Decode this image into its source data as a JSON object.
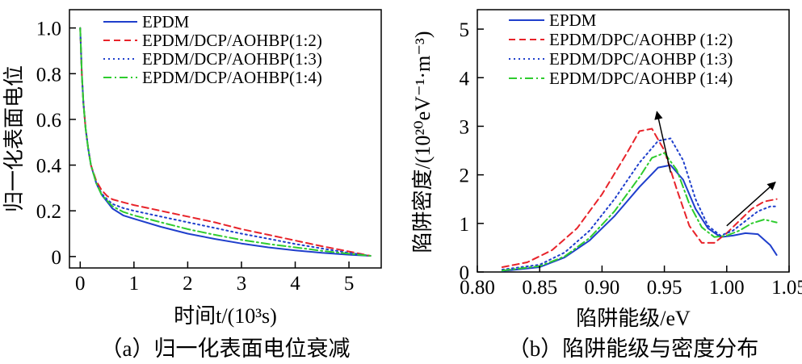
{
  "chart_data": [
    {
      "type": "line",
      "caption": "（a）归一化表面电位衰减",
      "xlabel": "时间t/(10³s)",
      "ylabel": "归一化表面电位",
      "xlim": [
        -0.2,
        5.6
      ],
      "ylim": [
        -0.05,
        1.08
      ],
      "xticks": [
        0,
        1,
        2,
        3,
        4,
        5
      ],
      "yticks": [
        "0",
        "0.2",
        "0.4",
        "0.6",
        "0.8",
        "1.0"
      ],
      "ytick_values": [
        0,
        0.2,
        0.4,
        0.6,
        0.8,
        1.0
      ],
      "legend_position": "top-right",
      "series": [
        {
          "name": "EPDM",
          "color": "#1f3fcc",
          "dash": "solid",
          "points": [
            [
              0,
              1.0
            ],
            [
              0.03,
              0.8
            ],
            [
              0.06,
              0.67
            ],
            [
              0.1,
              0.56
            ],
            [
              0.15,
              0.47
            ],
            [
              0.2,
              0.4
            ],
            [
              0.3,
              0.32
            ],
            [
              0.4,
              0.27
            ],
            [
              0.5,
              0.24
            ],
            [
              0.6,
              0.21
            ],
            [
              0.8,
              0.18
            ],
            [
              1.0,
              0.165
            ],
            [
              1.5,
              0.13
            ],
            [
              2.0,
              0.1
            ],
            [
              2.5,
              0.077
            ],
            [
              3.0,
              0.057
            ],
            [
              3.5,
              0.04
            ],
            [
              4.0,
              0.027
            ],
            [
              4.5,
              0.016
            ],
            [
              5.0,
              0.008
            ],
            [
              5.4,
              0.003
            ]
          ]
        },
        {
          "name": "EPDM/DCP/AOHBP(1:2)",
          "color": "#e8232a",
          "dash": "8,5",
          "points": [
            [
              0,
              1.0
            ],
            [
              0.03,
              0.8
            ],
            [
              0.06,
              0.67
            ],
            [
              0.1,
              0.56
            ],
            [
              0.15,
              0.47
            ],
            [
              0.2,
              0.4
            ],
            [
              0.3,
              0.33
            ],
            [
              0.4,
              0.29
            ],
            [
              0.5,
              0.265
            ],
            [
              0.6,
              0.25
            ],
            [
              0.8,
              0.237
            ],
            [
              1.0,
              0.225
            ],
            [
              1.5,
              0.2
            ],
            [
              2.0,
              0.175
            ],
            [
              2.5,
              0.15
            ],
            [
              3.0,
              0.12
            ],
            [
              3.5,
              0.095
            ],
            [
              4.0,
              0.07
            ],
            [
              4.5,
              0.045
            ],
            [
              5.0,
              0.022
            ],
            [
              5.4,
              0.003
            ]
          ]
        },
        {
          "name": "EPDM/DCP/AOHBP(1:3)",
          "color": "#1f3fcc",
          "dash": "2,4",
          "points": [
            [
              0,
              1.0
            ],
            [
              0.03,
              0.8
            ],
            [
              0.06,
              0.67
            ],
            [
              0.1,
              0.56
            ],
            [
              0.15,
              0.47
            ],
            [
              0.2,
              0.4
            ],
            [
              0.3,
              0.32
            ],
            [
              0.4,
              0.275
            ],
            [
              0.5,
              0.25
            ],
            [
              0.6,
              0.23
            ],
            [
              0.8,
              0.212
            ],
            [
              1.0,
              0.2
            ],
            [
              1.5,
              0.175
            ],
            [
              2.0,
              0.15
            ],
            [
              2.5,
              0.125
            ],
            [
              3.0,
              0.1
            ],
            [
              3.5,
              0.078
            ],
            [
              4.0,
              0.055
            ],
            [
              4.5,
              0.035
            ],
            [
              5.0,
              0.016
            ],
            [
              5.4,
              0.003
            ]
          ]
        },
        {
          "name": "EPDM/DCP/AOHBP(1:4)",
          "color": "#2ecc2e",
          "dash": "10,4,2,4",
          "points": [
            [
              0,
              1.0
            ],
            [
              0.03,
              0.8
            ],
            [
              0.06,
              0.67
            ],
            [
              0.1,
              0.56
            ],
            [
              0.15,
              0.47
            ],
            [
              0.2,
              0.4
            ],
            [
              0.3,
              0.32
            ],
            [
              0.4,
              0.27
            ],
            [
              0.5,
              0.245
            ],
            [
              0.6,
              0.22
            ],
            [
              0.8,
              0.195
            ],
            [
              1.0,
              0.18
            ],
            [
              1.5,
              0.15
            ],
            [
              2.0,
              0.12
            ],
            [
              2.5,
              0.095
            ],
            [
              3.0,
              0.073
            ],
            [
              3.5,
              0.055
            ],
            [
              4.0,
              0.04
            ],
            [
              4.5,
              0.025
            ],
            [
              5.0,
              0.012
            ],
            [
              5.4,
              0.003
            ]
          ]
        }
      ]
    },
    {
      "type": "line",
      "caption": "（b）陷阱能级与密度分布",
      "xlabel": "陷阱能级/eV",
      "ylabel": "陷阱密度/(10²⁰eV⁻¹·m⁻³)",
      "xlim": [
        0.8,
        1.05
      ],
      "ylim": [
        0,
        5.4
      ],
      "xticks": [
        "0.80",
        "0.85",
        "0.90",
        "0.95",
        "1.00",
        "1.05"
      ],
      "xtick_values": [
        0.8,
        0.85,
        0.9,
        0.95,
        1.0,
        1.05
      ],
      "yticks": [
        "0",
        "1",
        "2",
        "3",
        "4",
        "5"
      ],
      "ytick_values": [
        0,
        1,
        2,
        3,
        4,
        5
      ],
      "legend_position": "top-right",
      "annotations": [
        "arrow pointing up-left near peak at 0.94 eV",
        "arrow pointing up-right near 1.03 eV"
      ],
      "series": [
        {
          "name": "EPDM",
          "color": "#1f3fcc",
          "dash": "solid",
          "points": [
            [
              0.82,
              0.02
            ],
            [
              0.85,
              0.1
            ],
            [
              0.87,
              0.3
            ],
            [
              0.89,
              0.65
            ],
            [
              0.91,
              1.15
            ],
            [
              0.93,
              1.75
            ],
            [
              0.945,
              2.15
            ],
            [
              0.955,
              2.2
            ],
            [
              0.965,
              1.9
            ],
            [
              0.975,
              1.3
            ],
            [
              0.985,
              0.9
            ],
            [
              0.995,
              0.72
            ],
            [
              1.005,
              0.75
            ],
            [
              1.015,
              0.8
            ],
            [
              1.025,
              0.78
            ],
            [
              1.035,
              0.55
            ],
            [
              1.04,
              0.35
            ]
          ]
        },
        {
          "name": "EPDM/DPC/AOHBP (1:2)",
          "color": "#e8232a",
          "dash": "8,5",
          "points": [
            [
              0.82,
              0.1
            ],
            [
              0.84,
              0.2
            ],
            [
              0.86,
              0.45
            ],
            [
              0.88,
              0.9
            ],
            [
              0.9,
              1.6
            ],
            [
              0.92,
              2.45
            ],
            [
              0.93,
              2.9
            ],
            [
              0.94,
              2.95
            ],
            [
              0.95,
              2.5
            ],
            [
              0.96,
              1.7
            ],
            [
              0.97,
              0.95
            ],
            [
              0.98,
              0.6
            ],
            [
              0.99,
              0.6
            ],
            [
              1.0,
              0.8
            ],
            [
              1.01,
              1.05
            ],
            [
              1.02,
              1.3
            ],
            [
              1.03,
              1.45
            ],
            [
              1.04,
              1.5
            ]
          ]
        },
        {
          "name": "EPDM/DPC/AOHBP (1:3)",
          "color": "#1f3fcc",
          "dash": "2,4",
          "points": [
            [
              0.82,
              0.05
            ],
            [
              0.85,
              0.15
            ],
            [
              0.87,
              0.4
            ],
            [
              0.89,
              0.85
            ],
            [
              0.91,
              1.5
            ],
            [
              0.93,
              2.25
            ],
            [
              0.945,
              2.7
            ],
            [
              0.955,
              2.75
            ],
            [
              0.965,
              2.3
            ],
            [
              0.975,
              1.5
            ],
            [
              0.985,
              0.95
            ],
            [
              0.995,
              0.75
            ],
            [
              1.005,
              0.85
            ],
            [
              1.015,
              1.05
            ],
            [
              1.025,
              1.25
            ],
            [
              1.035,
              1.35
            ],
            [
              1.04,
              1.35
            ]
          ]
        },
        {
          "name": "EPDM/DPC/AOHBP (1:4)",
          "color": "#2ecc2e",
          "dash": "10,4,2,4",
          "points": [
            [
              0.82,
              0.03
            ],
            [
              0.85,
              0.12
            ],
            [
              0.87,
              0.32
            ],
            [
              0.89,
              0.7
            ],
            [
              0.91,
              1.25
            ],
            [
              0.93,
              1.95
            ],
            [
              0.94,
              2.35
            ],
            [
              0.95,
              2.45
            ],
            [
              0.96,
              2.1
            ],
            [
              0.97,
              1.4
            ],
            [
              0.98,
              0.92
            ],
            [
              0.99,
              0.72
            ],
            [
              1.0,
              0.75
            ],
            [
              1.01,
              0.85
            ],
            [
              1.02,
              1.0
            ],
            [
              1.03,
              1.08
            ],
            [
              1.04,
              1.02
            ]
          ]
        }
      ]
    }
  ]
}
